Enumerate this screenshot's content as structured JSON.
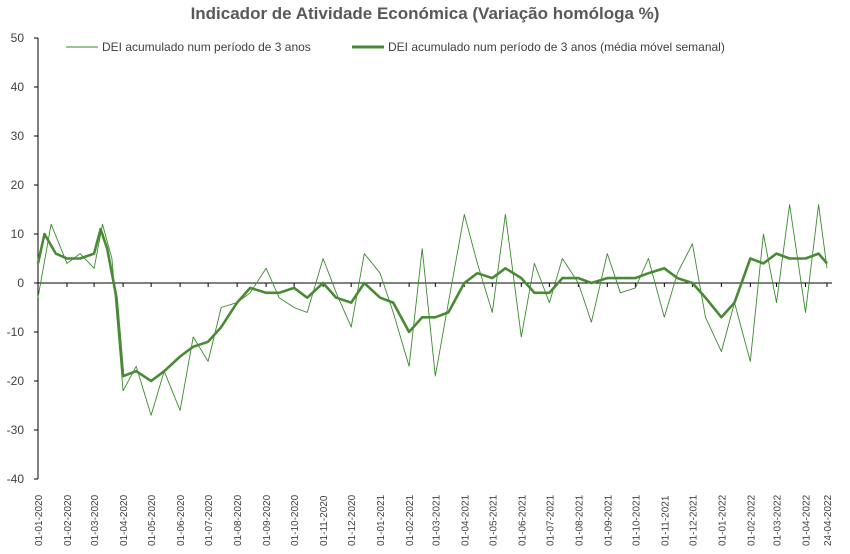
{
  "chart_data": {
    "type": "line",
    "title": "Indicador de Atividade Económica (Variação homóloga %)",
    "ylim": [
      -40,
      50
    ],
    "yticks": [
      50,
      40,
      30,
      20,
      10,
      0,
      -10,
      -20,
      -30,
      -40
    ],
    "x_tick_labels": [
      "01-01-2020",
      "01-02-2020",
      "01-03-2020",
      "01-04-2020",
      "01-05-2020",
      "01-06-2020",
      "01-07-2020",
      "01-08-2020",
      "01-09-2020",
      "01-10-2020",
      "01-11-2020",
      "01-12-2020",
      "01-01-2021",
      "01-02-2021",
      "01-03-2021",
      "01-04-2021",
      "01-05-2021",
      "01-06-2021",
      "01-07-2021",
      "01-08-2021",
      "01-09-2021",
      "01-10-2021",
      "01-11-2021",
      "01-12-2021",
      "01-01-2022",
      "01-02-2022",
      "01-03-2022",
      "01-04-2022",
      "24-04-2022"
    ],
    "colors": {
      "daily": "#3a8a2e",
      "weekly": "#4a8a35",
      "axis": "#000000"
    },
    "series": [
      {
        "name": "DEI acumulado num período de 3 anos",
        "style": "thin",
        "x": [
          "01-01-2020",
          "15-01-2020",
          "01-02-2020",
          "15-02-2020",
          "01-03-2020",
          "10-03-2020",
          "20-03-2020",
          "01-04-2020",
          "15-04-2020",
          "01-05-2020",
          "15-05-2020",
          "01-06-2020",
          "15-06-2020",
          "01-07-2020",
          "15-07-2020",
          "01-08-2020",
          "15-08-2020",
          "01-09-2020",
          "15-09-2020",
          "01-10-2020",
          "15-10-2020",
          "01-11-2020",
          "15-11-2020",
          "01-12-2020",
          "15-12-2020",
          "01-01-2021",
          "15-01-2021",
          "01-02-2021",
          "15-02-2021",
          "01-03-2021",
          "15-03-2021",
          "01-04-2021",
          "15-04-2021",
          "01-05-2021",
          "15-05-2021",
          "01-06-2021",
          "15-06-2021",
          "01-07-2021",
          "15-07-2021",
          "01-08-2021",
          "15-08-2021",
          "01-09-2021",
          "15-09-2021",
          "01-10-2021",
          "15-10-2021",
          "01-11-2021",
          "15-11-2021",
          "01-12-2021",
          "15-12-2021",
          "01-01-2022",
          "15-01-2022",
          "01-02-2022",
          "15-02-2022",
          "01-03-2022",
          "15-03-2022",
          "01-04-2022",
          "15-04-2022",
          "24-04-2022"
        ],
        "values": [
          -3,
          12,
          4,
          6,
          3,
          12,
          5,
          -22,
          -17,
          -27,
          -18,
          -26,
          -11,
          -16,
          -5,
          -4,
          -2,
          3,
          -3,
          -5,
          -6,
          5,
          -2,
          -9,
          6,
          2,
          -6,
          -17,
          7,
          -19,
          -4,
          14,
          4,
          -6,
          14,
          -11,
          4,
          -4,
          5,
          0,
          -8,
          6,
          -2,
          -1,
          5,
          -7,
          2,
          8,
          -7,
          -14,
          -4,
          -16,
          10,
          -4,
          16,
          -6,
          16,
          3
        ]
      },
      {
        "name": "DEI acumulado num período de 3 anos (média móvel semanal)",
        "style": "thick",
        "x": [
          "01-01-2020",
          "08-01-2020",
          "20-01-2020",
          "01-02-2020",
          "15-02-2020",
          "01-03-2020",
          "08-03-2020",
          "15-03-2020",
          "25-03-2020",
          "01-04-2020",
          "15-04-2020",
          "01-05-2020",
          "15-05-2020",
          "01-06-2020",
          "15-06-2020",
          "01-07-2020",
          "15-07-2020",
          "01-08-2020",
          "15-08-2020",
          "01-09-2020",
          "15-09-2020",
          "01-10-2020",
          "15-10-2020",
          "01-11-2020",
          "15-11-2020",
          "01-12-2020",
          "15-12-2020",
          "01-01-2021",
          "15-01-2021",
          "01-02-2021",
          "15-02-2021",
          "01-03-2021",
          "15-03-2021",
          "01-04-2021",
          "15-04-2021",
          "01-05-2021",
          "15-05-2021",
          "01-06-2021",
          "15-06-2021",
          "01-07-2021",
          "15-07-2021",
          "01-08-2021",
          "15-08-2021",
          "01-09-2021",
          "15-09-2021",
          "01-10-2021",
          "15-10-2021",
          "01-11-2021",
          "15-11-2021",
          "01-12-2021",
          "15-12-2021",
          "01-01-2022",
          "15-01-2022",
          "01-02-2022",
          "15-02-2022",
          "01-03-2022",
          "15-03-2022",
          "01-04-2022",
          "15-04-2022",
          "24-04-2022"
        ],
        "values": [
          4,
          10,
          6,
          5,
          5,
          6,
          11,
          7,
          -3,
          -19,
          -18,
          -20,
          -18,
          -15,
          -13,
          -12,
          -9,
          -4,
          -1,
          -2,
          -2,
          -1,
          -3,
          0,
          -3,
          -4,
          0,
          -3,
          -4,
          -10,
          -7,
          -7,
          -6,
          0,
          2,
          1,
          3,
          1,
          -2,
          -2,
          1,
          1,
          0,
          1,
          1,
          1,
          2,
          3,
          1,
          0,
          -3,
          -7,
          -4,
          5,
          4,
          6,
          5,
          5,
          6,
          4
        ]
      }
    ]
  }
}
